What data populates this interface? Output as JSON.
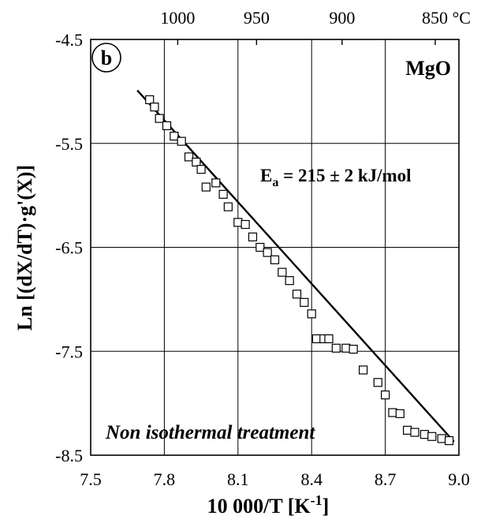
{
  "chart_data": {
    "type": "scatter",
    "panel_label": "b",
    "material_label": "MgO",
    "annotation": {
      "prefix": "E",
      "subscript": "a",
      "text": " = 215 ± 2 kJ/mol"
    },
    "footer_text": "Non isothermal treatment",
    "xlabel": {
      "main": "10 000/T [K",
      "superscript": "-1",
      "suffix": "]"
    },
    "ylabel": "Ln [(dX/dT)·g'(X)]",
    "xlim": [
      7.5,
      9.0
    ],
    "ylim": [
      -8.5,
      -4.5
    ],
    "x_ticks": [
      7.5,
      7.8,
      8.1,
      8.4,
      8.7,
      9.0
    ],
    "x_tick_labels": [
      "7.5",
      "7.8",
      "8.1",
      "8.4",
      "8.7",
      "9.0"
    ],
    "y_ticks": [
      -4.5,
      -5.5,
      -6.5,
      -7.5,
      -8.5
    ],
    "y_tick_labels": [
      "-4.5",
      "-5.5",
      "-6.5",
      "-7.5",
      "-8.5"
    ],
    "top_axis": {
      "unit": "°C",
      "ticks": [
        1000,
        950,
        900,
        850
      ],
      "tick_labels": [
        "1000",
        "950",
        "900",
        "850 °C"
      ]
    },
    "grid": true,
    "fit_line": {
      "x": [
        7.69,
        8.98
      ],
      "y": [
        -4.99,
        -8.37
      ]
    },
    "series": [
      {
        "x": [
          7.74,
          7.76,
          7.78,
          7.81,
          7.84,
          7.87,
          7.9,
          7.93,
          7.95,
          7.97,
          8.01,
          8.04,
          8.06,
          8.1,
          8.13,
          8.16,
          8.19,
          8.22,
          8.25,
          8.28,
          8.31,
          8.34,
          8.37,
          8.4,
          8.42,
          8.45,
          8.47,
          8.5,
          8.54,
          8.57,
          8.61,
          8.67,
          8.7,
          8.73,
          8.76,
          8.79,
          8.82,
          8.86,
          8.89,
          8.93,
          8.96
        ],
        "y": [
          -5.08,
          -5.15,
          -5.26,
          -5.33,
          -5.43,
          -5.48,
          -5.63,
          -5.68,
          -5.75,
          -5.92,
          -5.88,
          -5.99,
          -6.11,
          -6.26,
          -6.28,
          -6.4,
          -6.5,
          -6.55,
          -6.62,
          -6.74,
          -6.82,
          -6.95,
          -7.03,
          -7.14,
          -7.38,
          -7.38,
          -7.38,
          -7.47,
          -7.47,
          -7.48,
          -7.68,
          -7.8,
          -7.92,
          -8.09,
          -8.1,
          -8.26,
          -8.28,
          -8.3,
          -8.32,
          -8.34,
          -8.36
        ]
      }
    ]
  }
}
